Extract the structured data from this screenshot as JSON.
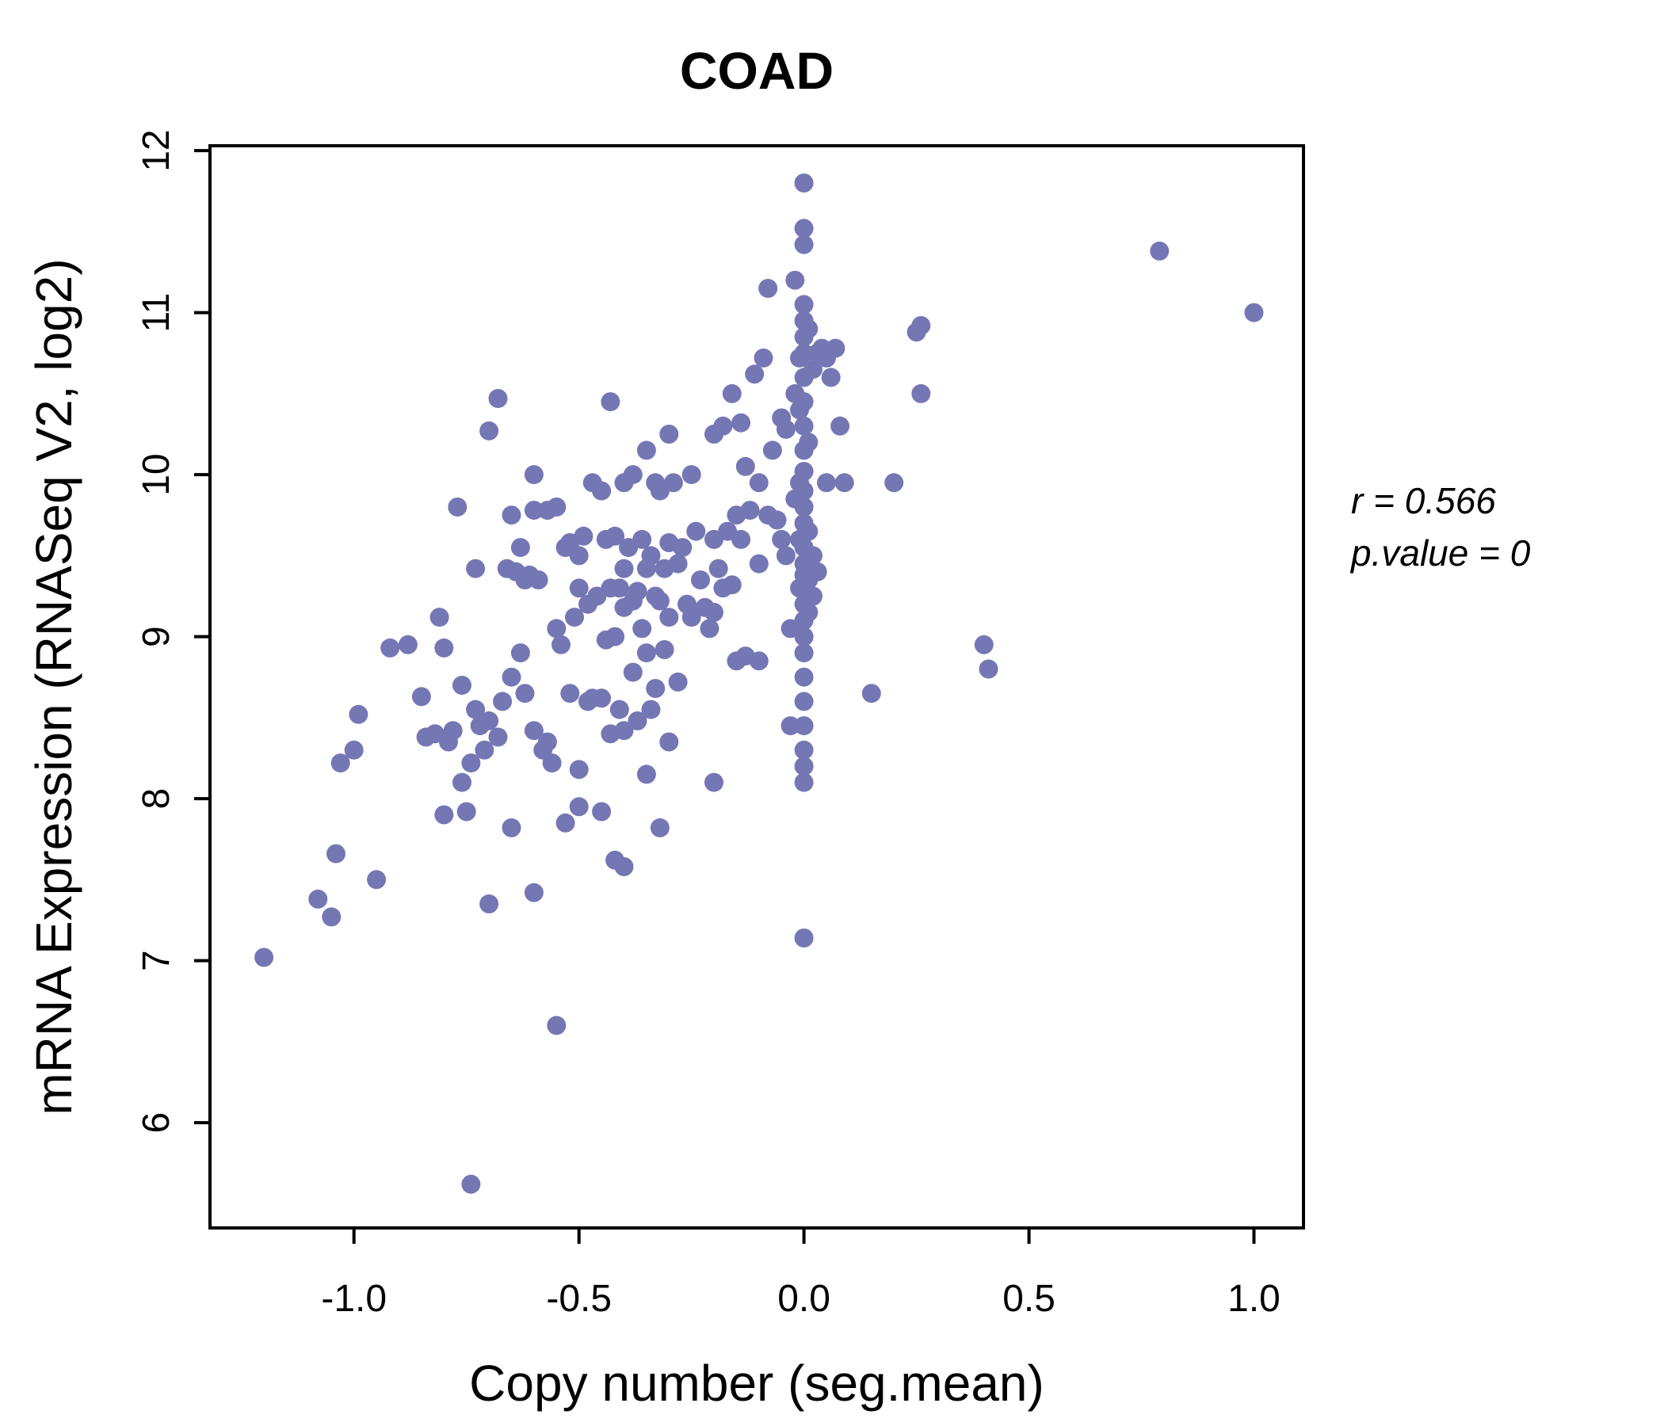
{
  "colors": {
    "point": "#7577b4",
    "title": "#767abb",
    "axis": "#000000",
    "background": "#ffffff"
  },
  "annotation": {
    "r_line": "r = 0.566",
    "p_line": "p.value = 0"
  },
  "chart_data": {
    "type": "scatter",
    "title": "COAD",
    "xlabel": "Copy number (seg.mean)",
    "ylabel": "mRNA Expression (RNASeq V2, log2)",
    "xlim": [
      -1.32,
      1.11
    ],
    "ylim": [
      5.35,
      12.03
    ],
    "xticks": [
      -1.0,
      -0.5,
      0.0,
      0.5,
      1.0
    ],
    "xtick_labels": [
      "-1.0",
      "-0.5",
      "0.0",
      "0.5",
      "1.0"
    ],
    "yticks": [
      6,
      7,
      8,
      9,
      10,
      11,
      12
    ],
    "ytick_labels": [
      "6",
      "7",
      "8",
      "9",
      "10",
      "11",
      "12"
    ],
    "grid": false,
    "legend": null,
    "correlation": {
      "r": 0.566,
      "p_value": 0
    },
    "points": [
      [
        -1.2,
        7.02
      ],
      [
        -1.08,
        7.38
      ],
      [
        -1.05,
        7.27
      ],
      [
        -1.04,
        7.66
      ],
      [
        -1.03,
        8.22
      ],
      [
        -1.0,
        8.3
      ],
      [
        -0.99,
        8.52
      ],
      [
        -0.95,
        7.5
      ],
      [
        -0.92,
        8.93
      ],
      [
        -0.88,
        8.95
      ],
      [
        -0.85,
        8.63
      ],
      [
        -0.84,
        8.38
      ],
      [
        -0.82,
        8.4
      ],
      [
        -0.81,
        9.12
      ],
      [
        -0.8,
        8.93
      ],
      [
        -0.8,
        7.9
      ],
      [
        -0.79,
        8.35
      ],
      [
        -0.78,
        8.42
      ],
      [
        -0.77,
        9.8
      ],
      [
        -0.76,
        8.7
      ],
      [
        -0.76,
        8.1
      ],
      [
        -0.75,
        7.92
      ],
      [
        -0.74,
        5.62
      ],
      [
        -0.74,
        8.22
      ],
      [
        -0.73,
        9.42
      ],
      [
        -0.73,
        8.55
      ],
      [
        -0.72,
        8.45
      ],
      [
        -0.71,
        8.3
      ],
      [
        -0.7,
        10.27
      ],
      [
        -0.7,
        8.48
      ],
      [
        -0.7,
        7.35
      ],
      [
        -0.68,
        10.47
      ],
      [
        -0.68,
        8.38
      ],
      [
        -0.67,
        8.6
      ],
      [
        -0.66,
        9.42
      ],
      [
        -0.65,
        9.75
      ],
      [
        -0.65,
        8.75
      ],
      [
        -0.65,
        7.82
      ],
      [
        -0.64,
        9.4
      ],
      [
        -0.63,
        9.55
      ],
      [
        -0.63,
        8.9
      ],
      [
        -0.62,
        9.35
      ],
      [
        -0.62,
        8.65
      ],
      [
        -0.61,
        9.38
      ],
      [
        -0.6,
        10.0
      ],
      [
        -0.6,
        9.78
      ],
      [
        -0.6,
        8.42
      ],
      [
        -0.6,
        7.42
      ],
      [
        -0.59,
        9.35
      ],
      [
        -0.58,
        8.3
      ],
      [
        -0.57,
        9.78
      ],
      [
        -0.57,
        8.35
      ],
      [
        -0.56,
        8.22
      ],
      [
        -0.55,
        9.8
      ],
      [
        -0.55,
        9.05
      ],
      [
        -0.55,
        6.6
      ],
      [
        -0.54,
        8.95
      ],
      [
        -0.53,
        9.55
      ],
      [
        -0.53,
        7.85
      ],
      [
        -0.52,
        9.58
      ],
      [
        -0.52,
        8.65
      ],
      [
        -0.51,
        9.12
      ],
      [
        -0.5,
        9.5
      ],
      [
        -0.5,
        9.3
      ],
      [
        -0.5,
        8.18
      ],
      [
        -0.5,
        7.95
      ],
      [
        -0.49,
        9.62
      ],
      [
        -0.48,
        9.2
      ],
      [
        -0.48,
        8.6
      ],
      [
        -0.47,
        9.95
      ],
      [
        -0.47,
        8.62
      ],
      [
        -0.46,
        9.25
      ],
      [
        -0.45,
        9.9
      ],
      [
        -0.45,
        8.62
      ],
      [
        -0.45,
        7.92
      ],
      [
        -0.44,
        9.6
      ],
      [
        -0.44,
        8.98
      ],
      [
        -0.43,
        10.45
      ],
      [
        -0.43,
        9.3
      ],
      [
        -0.43,
        8.4
      ],
      [
        -0.42,
        9.62
      ],
      [
        -0.42,
        9.0
      ],
      [
        -0.42,
        7.62
      ],
      [
        -0.41,
        9.3
      ],
      [
        -0.41,
        8.55
      ],
      [
        -0.4,
        9.95
      ],
      [
        -0.4,
        9.42
      ],
      [
        -0.4,
        9.18
      ],
      [
        -0.4,
        8.42
      ],
      [
        -0.4,
        7.58
      ],
      [
        -0.39,
        9.55
      ],
      [
        -0.38,
        10.0
      ],
      [
        -0.38,
        9.22
      ],
      [
        -0.38,
        8.78
      ],
      [
        -0.37,
        9.28
      ],
      [
        -0.37,
        8.48
      ],
      [
        -0.36,
        9.6
      ],
      [
        -0.36,
        9.05
      ],
      [
        -0.35,
        10.15
      ],
      [
        -0.35,
        9.42
      ],
      [
        -0.35,
        8.9
      ],
      [
        -0.35,
        8.15
      ],
      [
        -0.34,
        9.5
      ],
      [
        -0.34,
        8.55
      ],
      [
        -0.33,
        9.95
      ],
      [
        -0.33,
        9.25
      ],
      [
        -0.33,
        8.68
      ],
      [
        -0.32,
        9.9
      ],
      [
        -0.32,
        9.22
      ],
      [
        -0.32,
        7.82
      ],
      [
        -0.31,
        9.42
      ],
      [
        -0.31,
        8.92
      ],
      [
        -0.3,
        10.25
      ],
      [
        -0.3,
        9.58
      ],
      [
        -0.3,
        9.12
      ],
      [
        -0.3,
        8.35
      ],
      [
        -0.29,
        9.95
      ],
      [
        -0.28,
        9.45
      ],
      [
        -0.28,
        8.72
      ],
      [
        -0.27,
        9.55
      ],
      [
        -0.26,
        9.2
      ],
      [
        -0.25,
        10.0
      ],
      [
        -0.25,
        9.12
      ],
      [
        -0.24,
        9.65
      ],
      [
        -0.23,
        9.35
      ],
      [
        -0.22,
        9.18
      ],
      [
        -0.21,
        9.05
      ],
      [
        -0.2,
        10.25
      ],
      [
        -0.2,
        9.6
      ],
      [
        -0.2,
        9.15
      ],
      [
        -0.2,
        8.1
      ],
      [
        -0.19,
        9.42
      ],
      [
        -0.18,
        10.3
      ],
      [
        -0.18,
        9.3
      ],
      [
        -0.17,
        9.65
      ],
      [
        -0.16,
        10.5
      ],
      [
        -0.16,
        9.32
      ],
      [
        -0.15,
        9.75
      ],
      [
        -0.15,
        8.85
      ],
      [
        -0.14,
        10.32
      ],
      [
        -0.14,
        9.6
      ],
      [
        -0.13,
        10.05
      ],
      [
        -0.13,
        8.88
      ],
      [
        -0.12,
        9.78
      ],
      [
        -0.11,
        10.62
      ],
      [
        -0.1,
        9.95
      ],
      [
        -0.1,
        9.45
      ],
      [
        -0.1,
        8.85
      ],
      [
        -0.09,
        10.72
      ],
      [
        -0.08,
        11.15
      ],
      [
        -0.08,
        9.75
      ],
      [
        -0.07,
        10.15
      ],
      [
        -0.06,
        9.72
      ],
      [
        -0.05,
        10.35
      ],
      [
        -0.05,
        9.6
      ],
      [
        -0.04,
        10.28
      ],
      [
        -0.04,
        9.5
      ],
      [
        -0.03,
        9.05
      ],
      [
        -0.03,
        8.45
      ],
      [
        -0.02,
        11.2
      ],
      [
        -0.02,
        10.5
      ],
      [
        -0.02,
        9.85
      ],
      [
        -0.01,
        10.72
      ],
      [
        -0.01,
        10.4
      ],
      [
        -0.01,
        9.95
      ],
      [
        -0.01,
        9.6
      ],
      [
        -0.01,
        9.3
      ],
      [
        0.0,
        11.8
      ],
      [
        0.0,
        11.52
      ],
      [
        0.0,
        11.42
      ],
      [
        0.0,
        11.05
      ],
      [
        0.0,
        10.95
      ],
      [
        0.0,
        10.85
      ],
      [
        0.0,
        10.75
      ],
      [
        0.0,
        10.6
      ],
      [
        0.0,
        10.45
      ],
      [
        0.0,
        10.3
      ],
      [
        0.0,
        10.15
      ],
      [
        0.0,
        10.02
      ],
      [
        0.0,
        9.9
      ],
      [
        0.0,
        9.8
      ],
      [
        0.0,
        9.7
      ],
      [
        0.0,
        9.55
      ],
      [
        0.0,
        9.45
      ],
      [
        0.0,
        9.38
      ],
      [
        0.0,
        9.28
      ],
      [
        0.0,
        9.2
      ],
      [
        0.0,
        9.1
      ],
      [
        0.0,
        9.0
      ],
      [
        0.0,
        8.9
      ],
      [
        0.0,
        8.75
      ],
      [
        0.0,
        8.6
      ],
      [
        0.0,
        8.45
      ],
      [
        0.0,
        8.3
      ],
      [
        0.0,
        8.2
      ],
      [
        0.0,
        8.1
      ],
      [
        0.0,
        7.14
      ],
      [
        0.01,
        10.9
      ],
      [
        0.01,
        10.2
      ],
      [
        0.01,
        9.65
      ],
      [
        0.01,
        9.35
      ],
      [
        0.01,
        9.15
      ],
      [
        0.02,
        10.65
      ],
      [
        0.02,
        9.5
      ],
      [
        0.02,
        9.25
      ],
      [
        0.03,
        10.75
      ],
      [
        0.03,
        9.4
      ],
      [
        0.04,
        10.78
      ],
      [
        0.05,
        10.72
      ],
      [
        0.05,
        9.95
      ],
      [
        0.06,
        10.6
      ],
      [
        0.07,
        10.78
      ],
      [
        0.08,
        10.3
      ],
      [
        0.09,
        9.95
      ],
      [
        0.15,
        8.65
      ],
      [
        0.2,
        9.95
      ],
      [
        0.25,
        10.88
      ],
      [
        0.26,
        10.92
      ],
      [
        0.26,
        10.5
      ],
      [
        0.4,
        8.95
      ],
      [
        0.41,
        8.8
      ],
      [
        0.79,
        11.38
      ],
      [
        1.0,
        11.0
      ]
    ]
  }
}
